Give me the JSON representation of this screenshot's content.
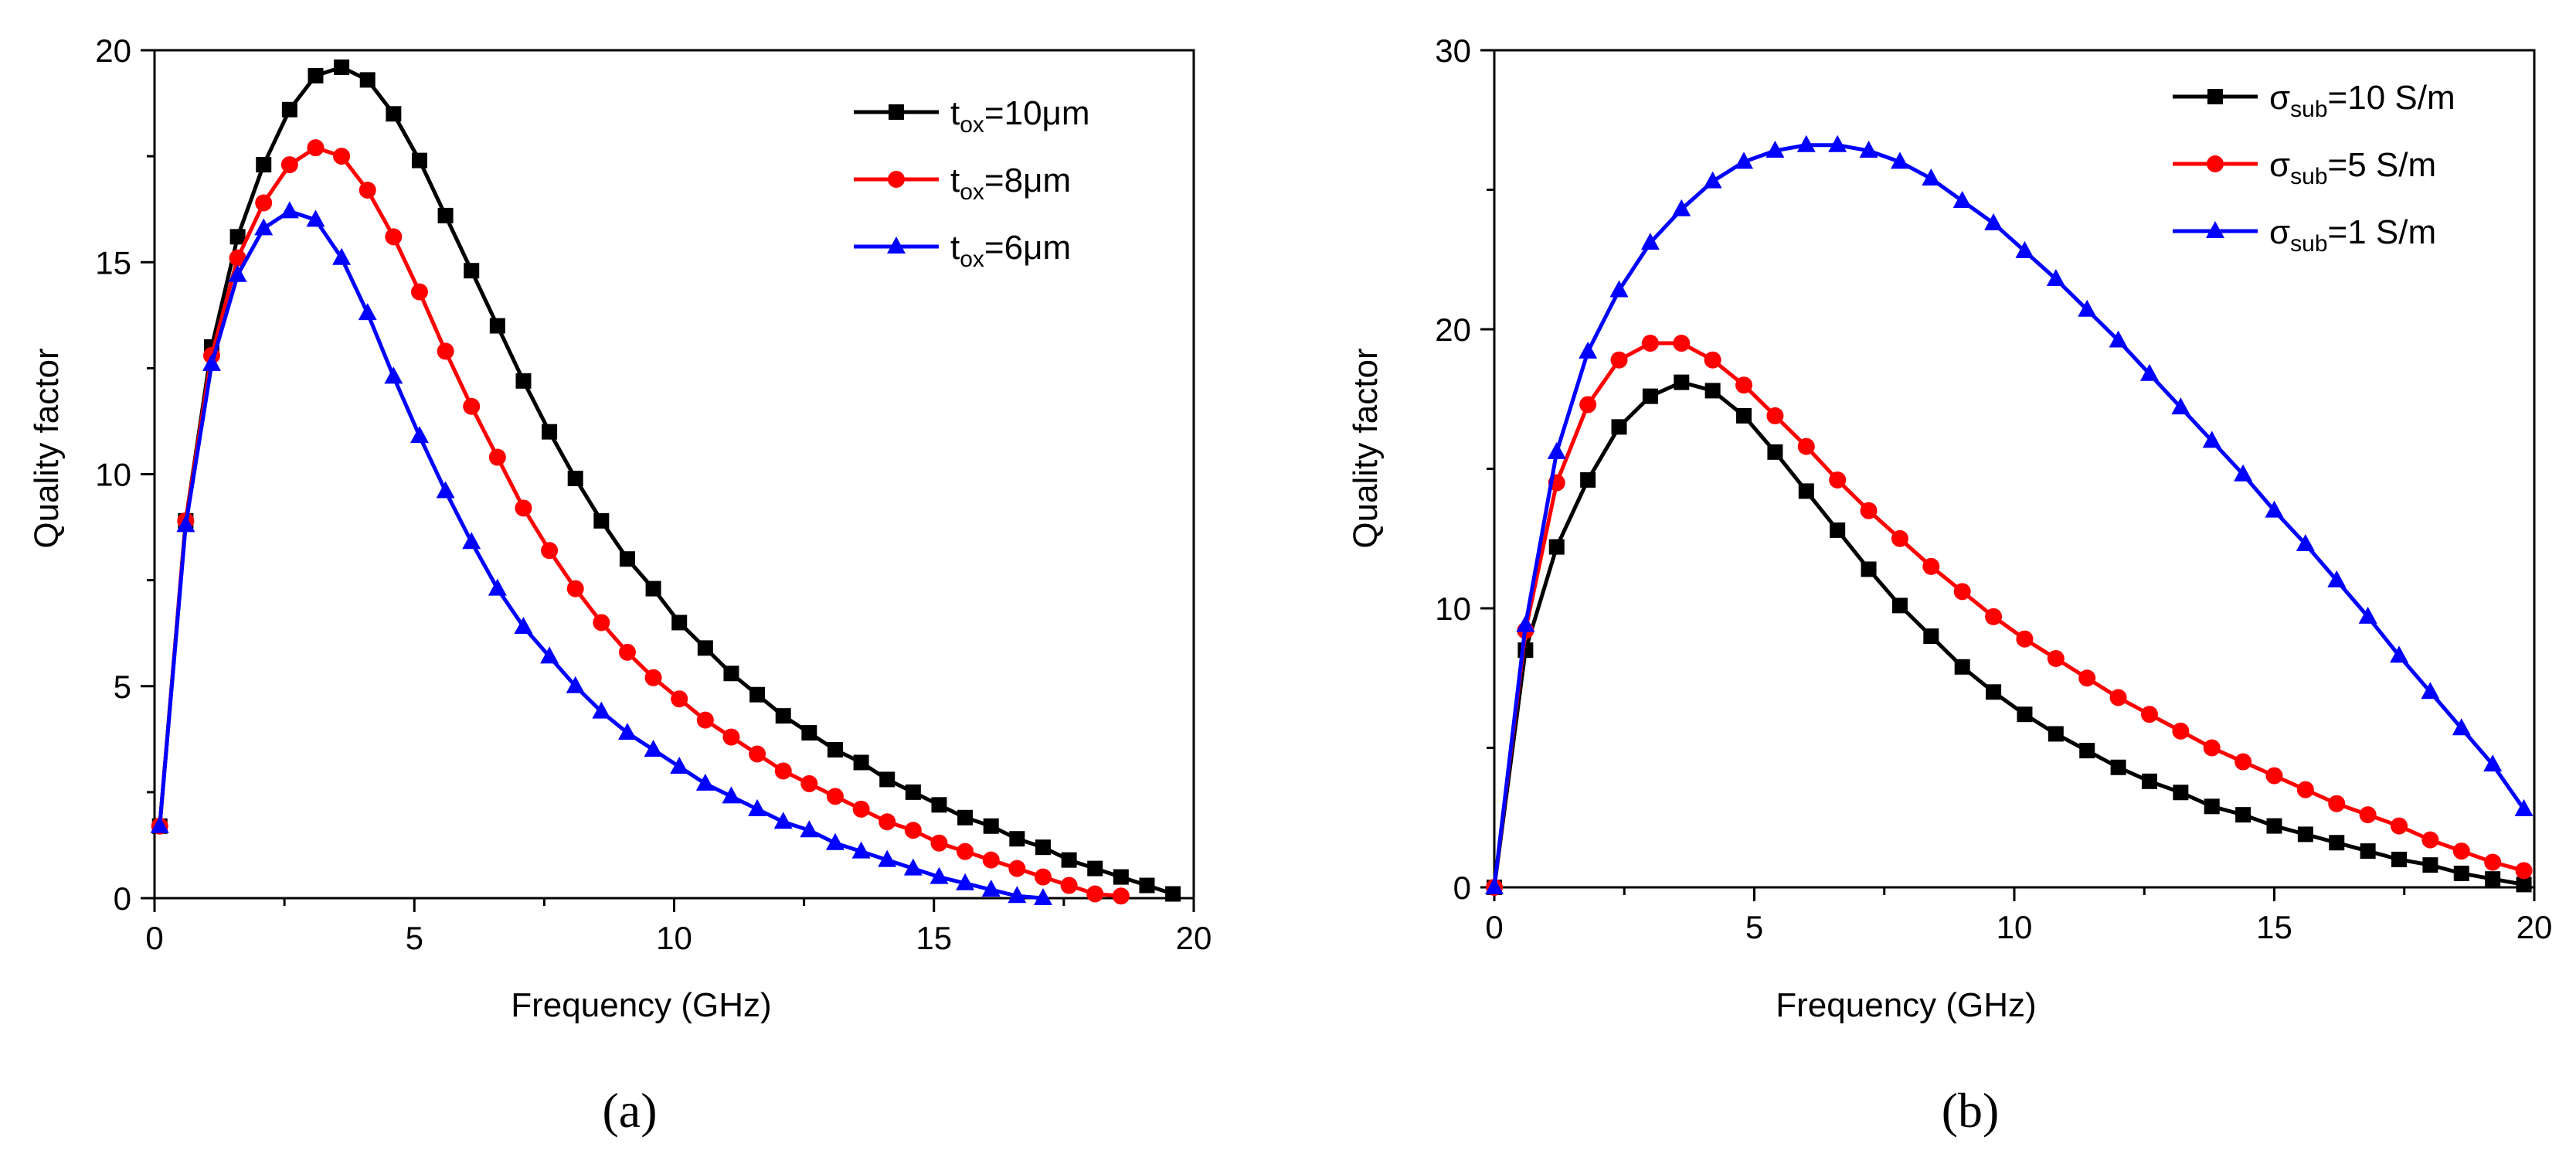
{
  "chart_data": [
    {
      "type": "line",
      "panel": "(a)",
      "xlabel": "Frequency (GHz)",
      "ylabel": "Quality factor",
      "xlim": [
        0,
        20
      ],
      "ylim": [
        0,
        20
      ],
      "xticks": [
        0,
        5,
        10,
        15,
        20
      ],
      "yticks": [
        0,
        5,
        10,
        15,
        20
      ],
      "legend_position": "top-right",
      "grid": false,
      "series": [
        {
          "name": "t_ox=10μm",
          "legend": {
            "base": "t",
            "sub": "ox",
            "rest": "=10μm"
          },
          "color": "#000000",
          "marker": "square",
          "x": [
            0.1,
            0.6,
            1.1,
            1.6,
            2.1,
            2.6,
            3.1,
            3.6,
            4.1,
            4.6,
            5.1,
            5.6,
            6.1,
            6.6,
            7.1,
            7.6,
            8.1,
            8.6,
            9.1,
            9.6,
            10.1,
            10.6,
            11.1,
            11.6,
            12.1,
            12.6,
            13.1,
            13.6,
            14.1,
            14.6,
            15.1,
            15.6,
            16.1,
            16.6,
            17.1,
            17.6,
            18.1,
            18.6,
            19.1,
            19.6
          ],
          "y": [
            1.7,
            8.9,
            13.0,
            15.6,
            17.3,
            18.6,
            19.4,
            19.6,
            19.3,
            18.5,
            17.4,
            16.1,
            14.8,
            13.5,
            12.2,
            11.0,
            9.9,
            8.9,
            8.0,
            7.3,
            6.5,
            5.9,
            5.3,
            4.8,
            4.3,
            3.9,
            3.5,
            3.2,
            2.8,
            2.5,
            2.2,
            1.9,
            1.7,
            1.4,
            1.2,
            0.9,
            0.7,
            0.5,
            0.3,
            0.1
          ]
        },
        {
          "name": "t_ox=8μm",
          "legend": {
            "base": "t",
            "sub": "ox",
            "rest": "=8μm"
          },
          "color": "#ff0000",
          "marker": "circle",
          "x": [
            0.1,
            0.6,
            1.1,
            1.6,
            2.1,
            2.6,
            3.1,
            3.6,
            4.1,
            4.6,
            5.1,
            5.6,
            6.1,
            6.6,
            7.1,
            7.6,
            8.1,
            8.6,
            9.1,
            9.6,
            10.1,
            10.6,
            11.1,
            11.6,
            12.1,
            12.6,
            13.1,
            13.6,
            14.1,
            14.6,
            15.1,
            15.6,
            16.1,
            16.6,
            17.1,
            17.6,
            18.1,
            18.6
          ],
          "y": [
            1.7,
            8.9,
            12.8,
            15.1,
            16.4,
            17.3,
            17.7,
            17.5,
            16.7,
            15.6,
            14.3,
            12.9,
            11.6,
            10.4,
            9.2,
            8.2,
            7.3,
            6.5,
            5.8,
            5.2,
            4.7,
            4.2,
            3.8,
            3.4,
            3.0,
            2.7,
            2.4,
            2.1,
            1.8,
            1.6,
            1.3,
            1.1,
            0.9,
            0.7,
            0.5,
            0.3,
            0.1,
            0.05
          ]
        },
        {
          "name": "t_ox=6μm",
          "legend": {
            "base": "t",
            "sub": "ox",
            "rest": "=6μm"
          },
          "color": "#0000ff",
          "marker": "triangle",
          "x": [
            0.1,
            0.6,
            1.1,
            1.6,
            2.1,
            2.6,
            3.1,
            3.6,
            4.1,
            4.6,
            5.1,
            5.6,
            6.1,
            6.6,
            7.1,
            7.6,
            8.1,
            8.6,
            9.1,
            9.6,
            10.1,
            10.6,
            11.1,
            11.6,
            12.1,
            12.6,
            13.1,
            13.6,
            14.1,
            14.6,
            15.1,
            15.6,
            16.1,
            16.6,
            17.1
          ],
          "y": [
            1.7,
            8.8,
            12.6,
            14.7,
            15.8,
            16.2,
            16.0,
            15.1,
            13.8,
            12.3,
            10.9,
            9.6,
            8.4,
            7.3,
            6.4,
            5.7,
            5.0,
            4.4,
            3.9,
            3.5,
            3.1,
            2.7,
            2.4,
            2.1,
            1.8,
            1.6,
            1.3,
            1.1,
            0.9,
            0.7,
            0.5,
            0.35,
            0.2,
            0.05,
            0.0
          ]
        }
      ]
    },
    {
      "type": "line",
      "panel": "(b)",
      "xlabel": "Frequency (GHz)",
      "ylabel": "Quality factor",
      "xlim": [
        0,
        20
      ],
      "ylim": [
        0,
        30
      ],
      "xticks": [
        0,
        5,
        10,
        15,
        20
      ],
      "yticks": [
        0,
        10,
        20,
        30
      ],
      "legend_position": "top-right",
      "grid": false,
      "series": [
        {
          "name": "σ_sub=10 S/m",
          "legend": {
            "base": "σ",
            "sub": "sub",
            "rest": "=10 S/m"
          },
          "color": "#000000",
          "marker": "square",
          "x": [
            0.0,
            0.6,
            1.2,
            1.8,
            2.4,
            3.0,
            3.6,
            4.2,
            4.8,
            5.4,
            6.0,
            6.6,
            7.2,
            7.8,
            8.4,
            9.0,
            9.6,
            10.2,
            10.8,
            11.4,
            12.0,
            12.6,
            13.2,
            13.8,
            14.4,
            15.0,
            15.6,
            16.2,
            16.8,
            17.4,
            18.0,
            18.6,
            19.2,
            19.8
          ],
          "y": [
            0.0,
            8.5,
            12.2,
            14.6,
            16.5,
            17.6,
            18.1,
            17.8,
            16.9,
            15.6,
            14.2,
            12.8,
            11.4,
            10.1,
            9.0,
            7.9,
            7.0,
            6.2,
            5.5,
            4.9,
            4.3,
            3.8,
            3.4,
            2.9,
            2.6,
            2.2,
            1.9,
            1.6,
            1.3,
            1.0,
            0.8,
            0.5,
            0.3,
            0.1
          ]
        },
        {
          "name": "σ_sub=5  S/m",
          "legend": {
            "base": "σ",
            "sub": "sub",
            "rest": "=5  S/m"
          },
          "color": "#ff0000",
          "marker": "circle",
          "x": [
            0.0,
            0.6,
            1.2,
            1.8,
            2.4,
            3.0,
            3.6,
            4.2,
            4.8,
            5.4,
            6.0,
            6.6,
            7.2,
            7.8,
            8.4,
            9.0,
            9.6,
            10.2,
            10.8,
            11.4,
            12.0,
            12.6,
            13.2,
            13.8,
            14.4,
            15.0,
            15.6,
            16.2,
            16.8,
            17.4,
            18.0,
            18.6,
            19.2,
            19.8
          ],
          "y": [
            0.0,
            9.2,
            14.5,
            17.3,
            18.9,
            19.5,
            19.5,
            18.9,
            18.0,
            16.9,
            15.8,
            14.6,
            13.5,
            12.5,
            11.5,
            10.6,
            9.7,
            8.9,
            8.2,
            7.5,
            6.8,
            6.2,
            5.6,
            5.0,
            4.5,
            4.0,
            3.5,
            3.0,
            2.6,
            2.2,
            1.7,
            1.3,
            0.9,
            0.6
          ]
        },
        {
          "name": "σ_sub=1  S/m",
          "legend": {
            "base": "σ",
            "sub": "sub",
            "rest": "=1  S/m"
          },
          "color": "#0000ff",
          "marker": "triangle",
          "x": [
            0.0,
            0.6,
            1.2,
            1.8,
            2.4,
            3.0,
            3.6,
            4.2,
            4.8,
            5.4,
            6.0,
            6.6,
            7.2,
            7.8,
            8.4,
            9.0,
            9.6,
            10.2,
            10.8,
            11.4,
            12.0,
            12.6,
            13.2,
            13.8,
            14.4,
            15.0,
            15.6,
            16.2,
            16.8,
            17.4,
            18.0,
            18.6,
            19.2,
            19.8
          ],
          "y": [
            0.0,
            9.4,
            15.6,
            19.2,
            21.4,
            23.1,
            24.3,
            25.3,
            26.0,
            26.4,
            26.6,
            26.6,
            26.4,
            26.0,
            25.4,
            24.6,
            23.8,
            22.8,
            21.8,
            20.7,
            19.6,
            18.4,
            17.2,
            16.0,
            14.8,
            13.5,
            12.3,
            11.0,
            9.7,
            8.3,
            7.0,
            5.7,
            4.4,
            2.8
          ]
        }
      ]
    }
  ]
}
